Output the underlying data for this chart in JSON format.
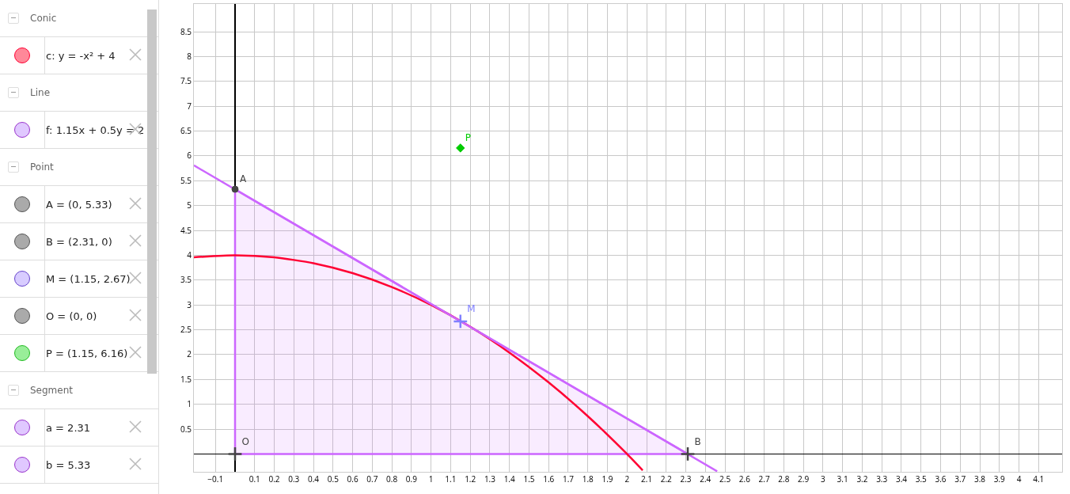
{
  "chart_data": [
    {
      "type": "other",
      "annotations": [
        "Conic",
        "c: y = -x² + 4",
        "Line",
        "f: 1.15x + 0.5y = 2",
        "Point",
        "A = (0, 5.33)",
        "B = (2.31, 0)",
        "M = (1.15, 2.67)",
        "O = (0, 0)",
        "P = (1.15, 6.16)",
        "Segment",
        "a = 2.31",
        "b = 5.33"
      ]
    },
    {
      "type": "line",
      "xlim": [
        -0.21,
        4.22
      ],
      "ylim": [
        -0.36,
        9.06
      ],
      "grid": true,
      "line_style": "solid",
      "xticks": [
        {
          "value": -0.1,
          "label": "−0.1"
        },
        0.1,
        0.2,
        0.3,
        0.4,
        0.5,
        0.6,
        0.7,
        0.8,
        0.9,
        1,
        1.1,
        1.2,
        1.3,
        1.4,
        1.5,
        1.6,
        1.7,
        1.8,
        1.9,
        2,
        2.1,
        2.2,
        2.3,
        2.4,
        2.5,
        2.6,
        2.7,
        2.8,
        2.9,
        3,
        3.1,
        3.2,
        3.3,
        3.4,
        3.5,
        3.6,
        3.7,
        3.8,
        3.9,
        4,
        4.1
      ],
      "yticks": [
        0.5,
        1,
        1.5,
        2,
        2.5,
        3,
        3.5,
        4,
        4.5,
        5,
        5.5,
        6,
        6.5,
        7,
        7.5,
        8,
        8.5
      ],
      "series": [
        {
          "type": "area",
          "color": "#cc66ff",
          "x": [
            0,
            0,
            2.31,
            0
          ],
          "values": [
            0,
            5.33,
            0,
            0
          ]
        },
        {
          "color": "#ff0033",
          "x": [
            -0.21,
            0,
            0.2,
            0.4,
            0.6,
            0.8,
            1,
            1.2,
            1.4,
            1.6,
            1.8,
            2,
            2.08
          ],
          "values": [
            3.96,
            4,
            3.96,
            3.84,
            3.64,
            3.36,
            3,
            2.56,
            2.04,
            1.44,
            0.76,
            0,
            -0.33
          ]
        },
        {
          "color": "#cc66ff",
          "x": [
            -0.21,
            2.46
          ],
          "values": [
            5.81,
            -0.35
          ]
        },
        {
          "type": "scatter",
          "name": "A",
          "color": "#444444",
          "marker": "circle",
          "x": [
            0
          ],
          "values": [
            5.33
          ]
        },
        {
          "type": "scatter",
          "name": "B",
          "color": "#444444",
          "marker": "cross",
          "x": [
            2.31
          ],
          "values": [
            0
          ]
        },
        {
          "type": "scatter",
          "name": "M",
          "color": "#8080ff",
          "marker": "cross",
          "x": [
            1.15
          ],
          "values": [
            2.67
          ]
        },
        {
          "type": "scatter",
          "name": "O",
          "color": "#444444",
          "marker": "cross",
          "x": [
            0
          ],
          "values": [
            0
          ]
        },
        {
          "type": "scatter",
          "name": "P",
          "color": "#00cc00",
          "marker": "diamond",
          "x": [
            1.15
          ],
          "values": [
            6.16
          ]
        }
      ]
    }
  ]
}
